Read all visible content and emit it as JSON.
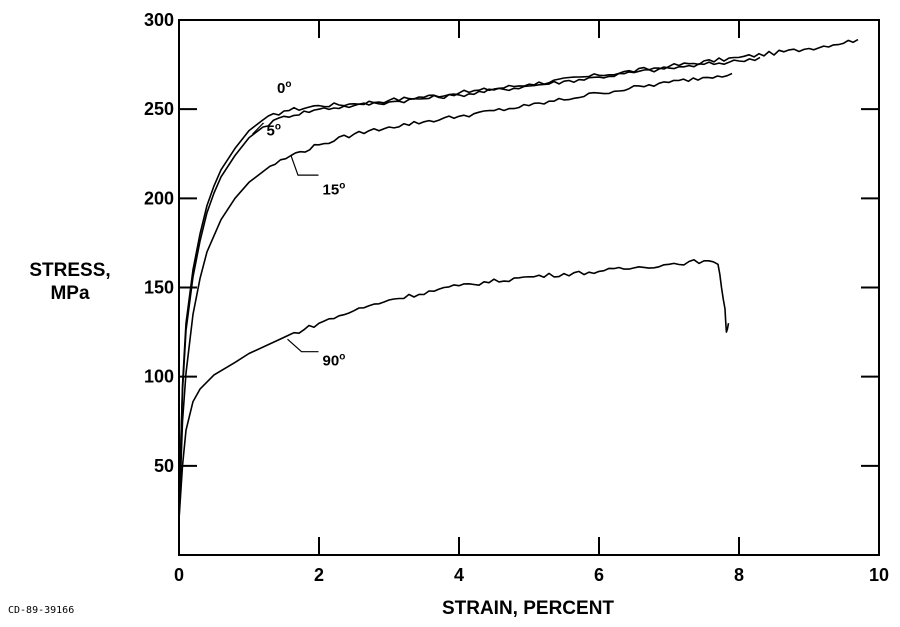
{
  "chart_data": {
    "type": "line",
    "title": "",
    "xlabel": "STRAIN, PERCENT",
    "ylabel_lines": [
      "STRESS,",
      "MPa"
    ],
    "xlim": [
      0,
      10
    ],
    "ylim": [
      0,
      300
    ],
    "x_ticks": [
      "0",
      "2",
      "4",
      "6",
      "8",
      "10"
    ],
    "y_ticks": [
      "50",
      "100",
      "150",
      "200",
      "250",
      "300"
    ],
    "grid": false,
    "legend": "none (curves labeled directly)",
    "series": [
      {
        "name": "0°",
        "label": "0",
        "x": [
          0.0,
          0.05,
          0.1,
          0.2,
          0.3,
          0.4,
          0.5,
          0.6,
          0.8,
          1.0,
          1.2,
          1.5,
          2.0,
          2.5,
          3.0,
          4.0,
          5.0,
          6.0,
          7.0,
          8.0,
          9.0,
          9.7
        ],
        "y": [
          25,
          95,
          130,
          160,
          180,
          196,
          207,
          216,
          228,
          238,
          244,
          249,
          252,
          253,
          255,
          259,
          264,
          269,
          274,
          279,
          284,
          289
        ]
      },
      {
        "name": "5°",
        "label": "5",
        "x": [
          0.0,
          0.05,
          0.1,
          0.2,
          0.3,
          0.4,
          0.5,
          0.6,
          0.8,
          1.0,
          1.2,
          1.5,
          2.0,
          2.5,
          3.0,
          4.0,
          5.0,
          6.0,
          7.0,
          8.0,
          8.3
        ],
        "y": [
          25,
          92,
          126,
          156,
          176,
          192,
          203,
          212,
          224,
          234,
          240,
          246,
          250,
          252,
          254,
          258,
          263,
          268,
          273,
          277,
          279
        ]
      },
      {
        "name": "15°",
        "label": "15",
        "x": [
          0.0,
          0.05,
          0.1,
          0.2,
          0.3,
          0.4,
          0.6,
          0.8,
          1.0,
          1.3,
          1.6,
          2.0,
          2.5,
          3.0,
          4.0,
          5.0,
          6.0,
          7.0,
          7.9
        ],
        "y": [
          20,
          75,
          102,
          135,
          155,
          170,
          188,
          200,
          209,
          218,
          224,
          230,
          236,
          240,
          246,
          252,
          259,
          265,
          270
        ]
      },
      {
        "name": "90°",
        "label": "90",
        "x": [
          0.0,
          0.05,
          0.1,
          0.2,
          0.3,
          0.5,
          0.8,
          1.0,
          1.5,
          2.0,
          2.5,
          3.0,
          4.0,
          5.0,
          6.0,
          6.5,
          7.0,
          7.5,
          7.7,
          7.75,
          7.8,
          7.82,
          7.85
        ],
        "y": [
          20,
          50,
          70,
          86,
          93,
          101,
          108,
          113,
          122,
          130,
          137,
          143,
          151,
          156,
          159,
          161,
          163,
          165,
          163,
          150,
          138,
          125,
          130
        ]
      }
    ]
  },
  "figure_id": "CD-89-39166"
}
